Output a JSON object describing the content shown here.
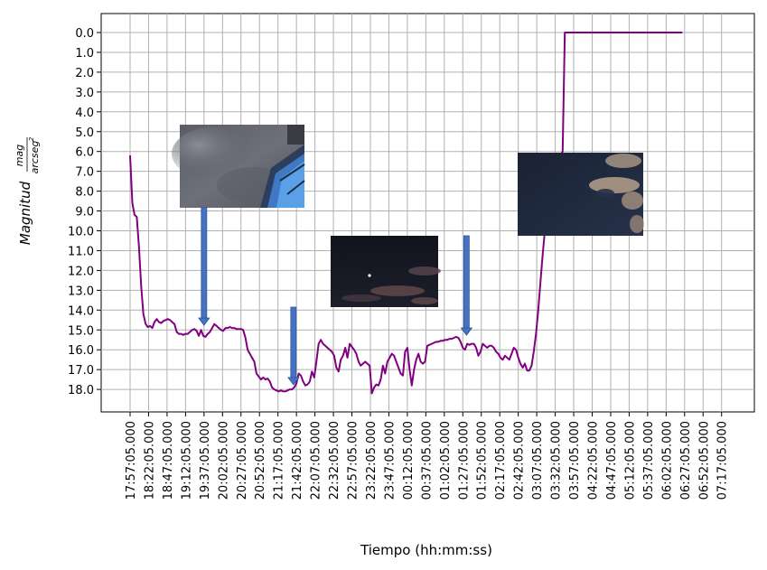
{
  "chart_data": {
    "type": "line",
    "title": "",
    "xlabel": "Tiempo (hh:mm:ss)",
    "ylabel": {
      "main": "Magnitud",
      "unit_numerator": "mag",
      "unit_denominator": "arcseg",
      "unit_exponent": "2"
    },
    "y_inverted": true,
    "ylim": [
      0,
      19
    ],
    "grid": true,
    "series_color": "#800080",
    "arrow_color": "#4472c4",
    "y_ticks": [
      "0.0",
      "1.0",
      "2.0",
      "3.0",
      "4.0",
      "5.0",
      "6.0",
      "7.0",
      "8.0",
      "9.0",
      "10.0",
      "11.0",
      "12.0",
      "13.0",
      "14.0",
      "15.0",
      "16.0",
      "17.0",
      "18.0"
    ],
    "x_ticks": [
      "17:57:05.000",
      "18:22:05.000",
      "18:47:05.000",
      "19:12:05.000",
      "19:37:05.000",
      "20:02:05.000",
      "20:27:05.000",
      "20:52:05.000",
      "21:17:05.000",
      "21:42:05.000",
      "22:07:05.000",
      "22:32:05.000",
      "22:57:05.000",
      "23:22:05.000",
      "23:47:05.000",
      "00:12:05.000",
      "00:37:05.000",
      "01:02:05.000",
      "01:27:05.000",
      "01:52:05.000",
      "02:17:05.000",
      "02:42:05.000",
      "03:07:05.000",
      "03:32:05.000",
      "03:57:05.000",
      "04:22:05.000",
      "04:47:05.000",
      "05:12:05.000",
      "05:37:05.000",
      "06:02:05.000",
      "06:27:05.000",
      "06:52:05.000",
      "07:17:05.000"
    ],
    "series": [
      {
        "x_minutes_from_start": [
          0,
          3,
          6,
          9,
          12,
          15,
          18,
          21,
          24,
          27,
          30,
          33,
          36,
          39,
          42,
          45,
          48,
          51,
          54,
          57,
          60,
          63,
          66,
          69,
          72,
          75,
          78,
          81,
          84,
          87,
          90,
          93,
          96,
          99,
          102,
          105,
          108,
          111,
          114,
          117,
          120,
          123,
          126,
          129,
          132,
          135,
          138,
          141,
          144,
          147,
          150,
          153,
          156,
          159,
          162,
          165,
          168,
          171,
          174,
          177,
          180,
          183,
          186,
          189,
          192,
          195,
          198,
          201,
          204,
          207,
          210,
          213,
          216,
          219,
          222,
          225,
          228,
          231,
          234,
          237,
          240,
          243,
          246,
          249,
          252,
          255,
          258,
          261,
          264,
          267,
          270,
          273,
          276,
          279,
          282,
          285,
          288,
          291,
          294,
          297,
          300,
          303,
          306,
          309,
          312,
          315,
          318,
          321,
          324,
          327,
          330,
          333,
          336,
          339,
          342,
          345,
          348,
          351,
          354,
          357,
          360,
          363,
          366,
          369,
          372,
          375,
          378,
          381,
          384,
          387,
          390,
          393,
          396,
          399,
          402,
          405,
          408,
          411,
          414,
          417,
          420,
          423,
          426,
          429,
          432,
          435,
          438,
          441,
          444,
          447,
          450,
          453,
          456,
          459,
          462,
          465,
          468,
          471,
          474,
          477,
          480,
          483,
          486,
          489,
          492,
          495,
          498,
          501,
          504,
          507,
          510,
          513,
          516,
          519,
          522,
          525,
          528,
          531,
          534,
          537,
          540,
          543,
          546,
          549,
          552,
          555,
          558,
          561,
          564,
          567,
          570,
          573,
          576,
          579,
          582,
          585,
          588,
          591,
          594,
          597,
          600,
          603,
          606,
          609,
          612,
          615,
          618,
          621,
          624,
          627,
          630,
          633,
          636,
          639,
          642,
          645,
          648,
          651,
          654,
          657,
          660,
          663,
          666,
          669,
          672,
          675,
          678,
          681,
          684,
          687,
          690,
          693,
          696,
          699,
          702,
          705,
          708,
          711,
          714,
          717,
          720,
          723,
          726,
          729,
          732,
          735,
          738,
          741,
          744,
          747,
          750,
          753,
          756,
          759,
          762,
          765,
          768,
          771,
          774,
          777,
          780,
          783,
          786,
          789,
          792,
          795,
          798,
          801,
          804,
          807,
          810,
          813,
          816,
          819
        ],
        "y": [
          6.2,
          8.6,
          9.2,
          9.3,
          10.8,
          12.8,
          14.2,
          14.7,
          14.85,
          14.8,
          14.9,
          14.6,
          14.45,
          14.6,
          14.65,
          14.55,
          14.5,
          14.45,
          14.5,
          14.6,
          14.7,
          15.1,
          15.2,
          15.2,
          15.25,
          15.2,
          15.2,
          15.1,
          15.0,
          14.95,
          15.05,
          15.3,
          15.0,
          15.3,
          15.35,
          15.2,
          15.1,
          14.9,
          14.7,
          14.8,
          14.9,
          15.0,
          15.05,
          14.9,
          14.9,
          14.85,
          14.9,
          14.9,
          14.95,
          14.95,
          14.95,
          15.0,
          15.4,
          16.0,
          16.2,
          16.4,
          16.6,
          17.2,
          17.35,
          17.5,
          17.4,
          17.5,
          17.45,
          17.6,
          17.9,
          18.0,
          18.05,
          18.1,
          18.05,
          18.1,
          18.1,
          18.05,
          18.0,
          18.0,
          17.9,
          17.7,
          17.2,
          17.3,
          17.6,
          17.8,
          17.75,
          17.6,
          17.1,
          17.4,
          16.6,
          15.7,
          15.5,
          15.7,
          15.8,
          15.9,
          16.0,
          16.1,
          16.3,
          16.9,
          17.1,
          16.5,
          16.3,
          15.9,
          16.4,
          15.7,
          15.85,
          16.0,
          16.2,
          16.6,
          16.8,
          16.7,
          16.6,
          16.7,
          16.8,
          18.2,
          17.9,
          17.75,
          17.8,
          17.5,
          16.8,
          17.2,
          16.6,
          16.4,
          16.2,
          16.3,
          16.6,
          16.9,
          17.2,
          17.3,
          16.1,
          15.9,
          17.0,
          17.8,
          17.0,
          16.5,
          16.2,
          16.6,
          16.7,
          16.6,
          15.8,
          15.75,
          15.7,
          15.65,
          15.6,
          15.6,
          15.55,
          15.55,
          15.5,
          15.5,
          15.45,
          15.45,
          15.4,
          15.35,
          15.4,
          15.6,
          15.9,
          16.0,
          15.7,
          15.75,
          15.7,
          15.7,
          15.9,
          16.3,
          16.1,
          15.7,
          15.8,
          15.9,
          15.8,
          15.8,
          15.9,
          16.1,
          16.2,
          16.4,
          16.5,
          16.3,
          16.4,
          16.5,
          16.2,
          15.9,
          16.0,
          16.4,
          16.7,
          16.9,
          16.7,
          17.05,
          17.05,
          16.8,
          16.1,
          15.2,
          14.0,
          12.6,
          11.2,
          10.0,
          9.0,
          8.4,
          7.8,
          7.2,
          6.8,
          6.5,
          6.2,
          6.0,
          0.0,
          0.0,
          0.0,
          0.0,
          0.0,
          0.0,
          0.0,
          0.0,
          0.0,
          0.0,
          0.0,
          0.0,
          0.0,
          0.0,
          0.0,
          0.0,
          0.0,
          0.0,
          0.0,
          0.0,
          0.0,
          0.0,
          0.0,
          0.0,
          0.0,
          0.0,
          0.0,
          0.0,
          0.0,
          0.0,
          0.0,
          0.0,
          0.0,
          0.0,
          0.0,
          0.0,
          0.0,
          0.0,
          0.0,
          0.0,
          0.0,
          0.0,
          0.0,
          0.0,
          0.0,
          0.0,
          0.0,
          0.0,
          0.0,
          0.0,
          0.0,
          0.0,
          0.0,
          0.0
        ]
      }
    ],
    "annotations": [
      {
        "kind": "photo",
        "scene": "cloudy-daylight-building",
        "arrow_to_x_minutes": 100,
        "arrow_to_y": 14.9
      },
      {
        "kind": "photo",
        "scene": "night-sky-few-clouds",
        "arrow_to_x_minutes": 221,
        "arrow_to_y": 17.9
      },
      {
        "kind": "photo",
        "scene": "night-sky-clouds",
        "arrow_to_x_minutes": 455,
        "arrow_to_y": 15.4
      }
    ]
  }
}
